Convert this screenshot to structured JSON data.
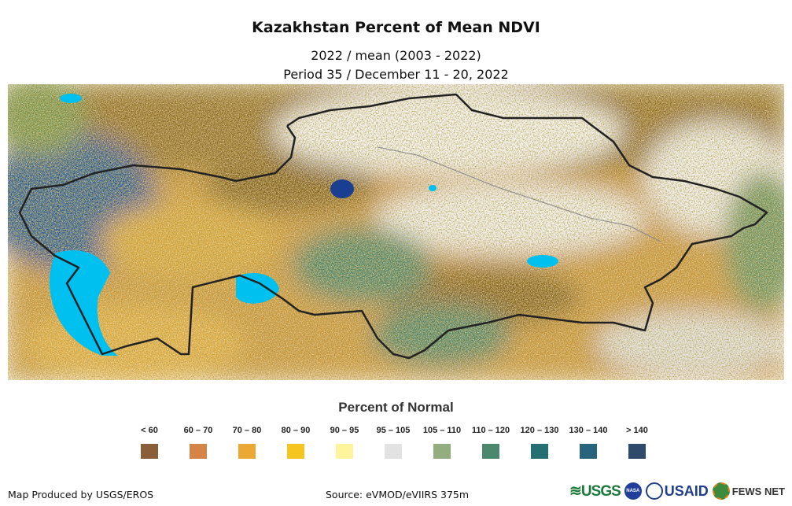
{
  "title": "Kazakhstan Percent of Mean NDVI",
  "subtitle1": "2022 / mean (2003 - 2022)",
  "subtitle2": "Period 35 / December 11 - 20, 2022",
  "legend": {
    "title": "Percent of Normal",
    "items": [
      {
        "label": "< 60",
        "color": "#8b5e3a"
      },
      {
        "label": "60 – 70",
        "color": "#d48446"
      },
      {
        "label": "70 – 80",
        "color": "#eba834"
      },
      {
        "label": "80 – 90",
        "color": "#f5c61f"
      },
      {
        "label": "90 – 95",
        "color": "#fdf49b"
      },
      {
        "label": "95 – 105",
        "color": "#e2e2e2"
      },
      {
        "label": "105 – 110",
        "color": "#93ad7f"
      },
      {
        "label": "110 – 120",
        "color": "#4a8870"
      },
      {
        "label": "120 – 130",
        "color": "#256f74"
      },
      {
        "label": "130 – 140",
        "color": "#26657c"
      },
      {
        "label": "> 140",
        "color": "#2f4a6a"
      }
    ]
  },
  "footer": {
    "credit": "Map Produced by USGS/EROS",
    "source": "Source: eVMOD/eVIIRS 375m",
    "logos": [
      "USGS",
      "NASA",
      "USAID",
      "FEWS NET"
    ]
  },
  "colors": {
    "water": "#00c0f0",
    "border": "#222222",
    "snow": "#ffffff",
    "brown": "#7a5410"
  }
}
